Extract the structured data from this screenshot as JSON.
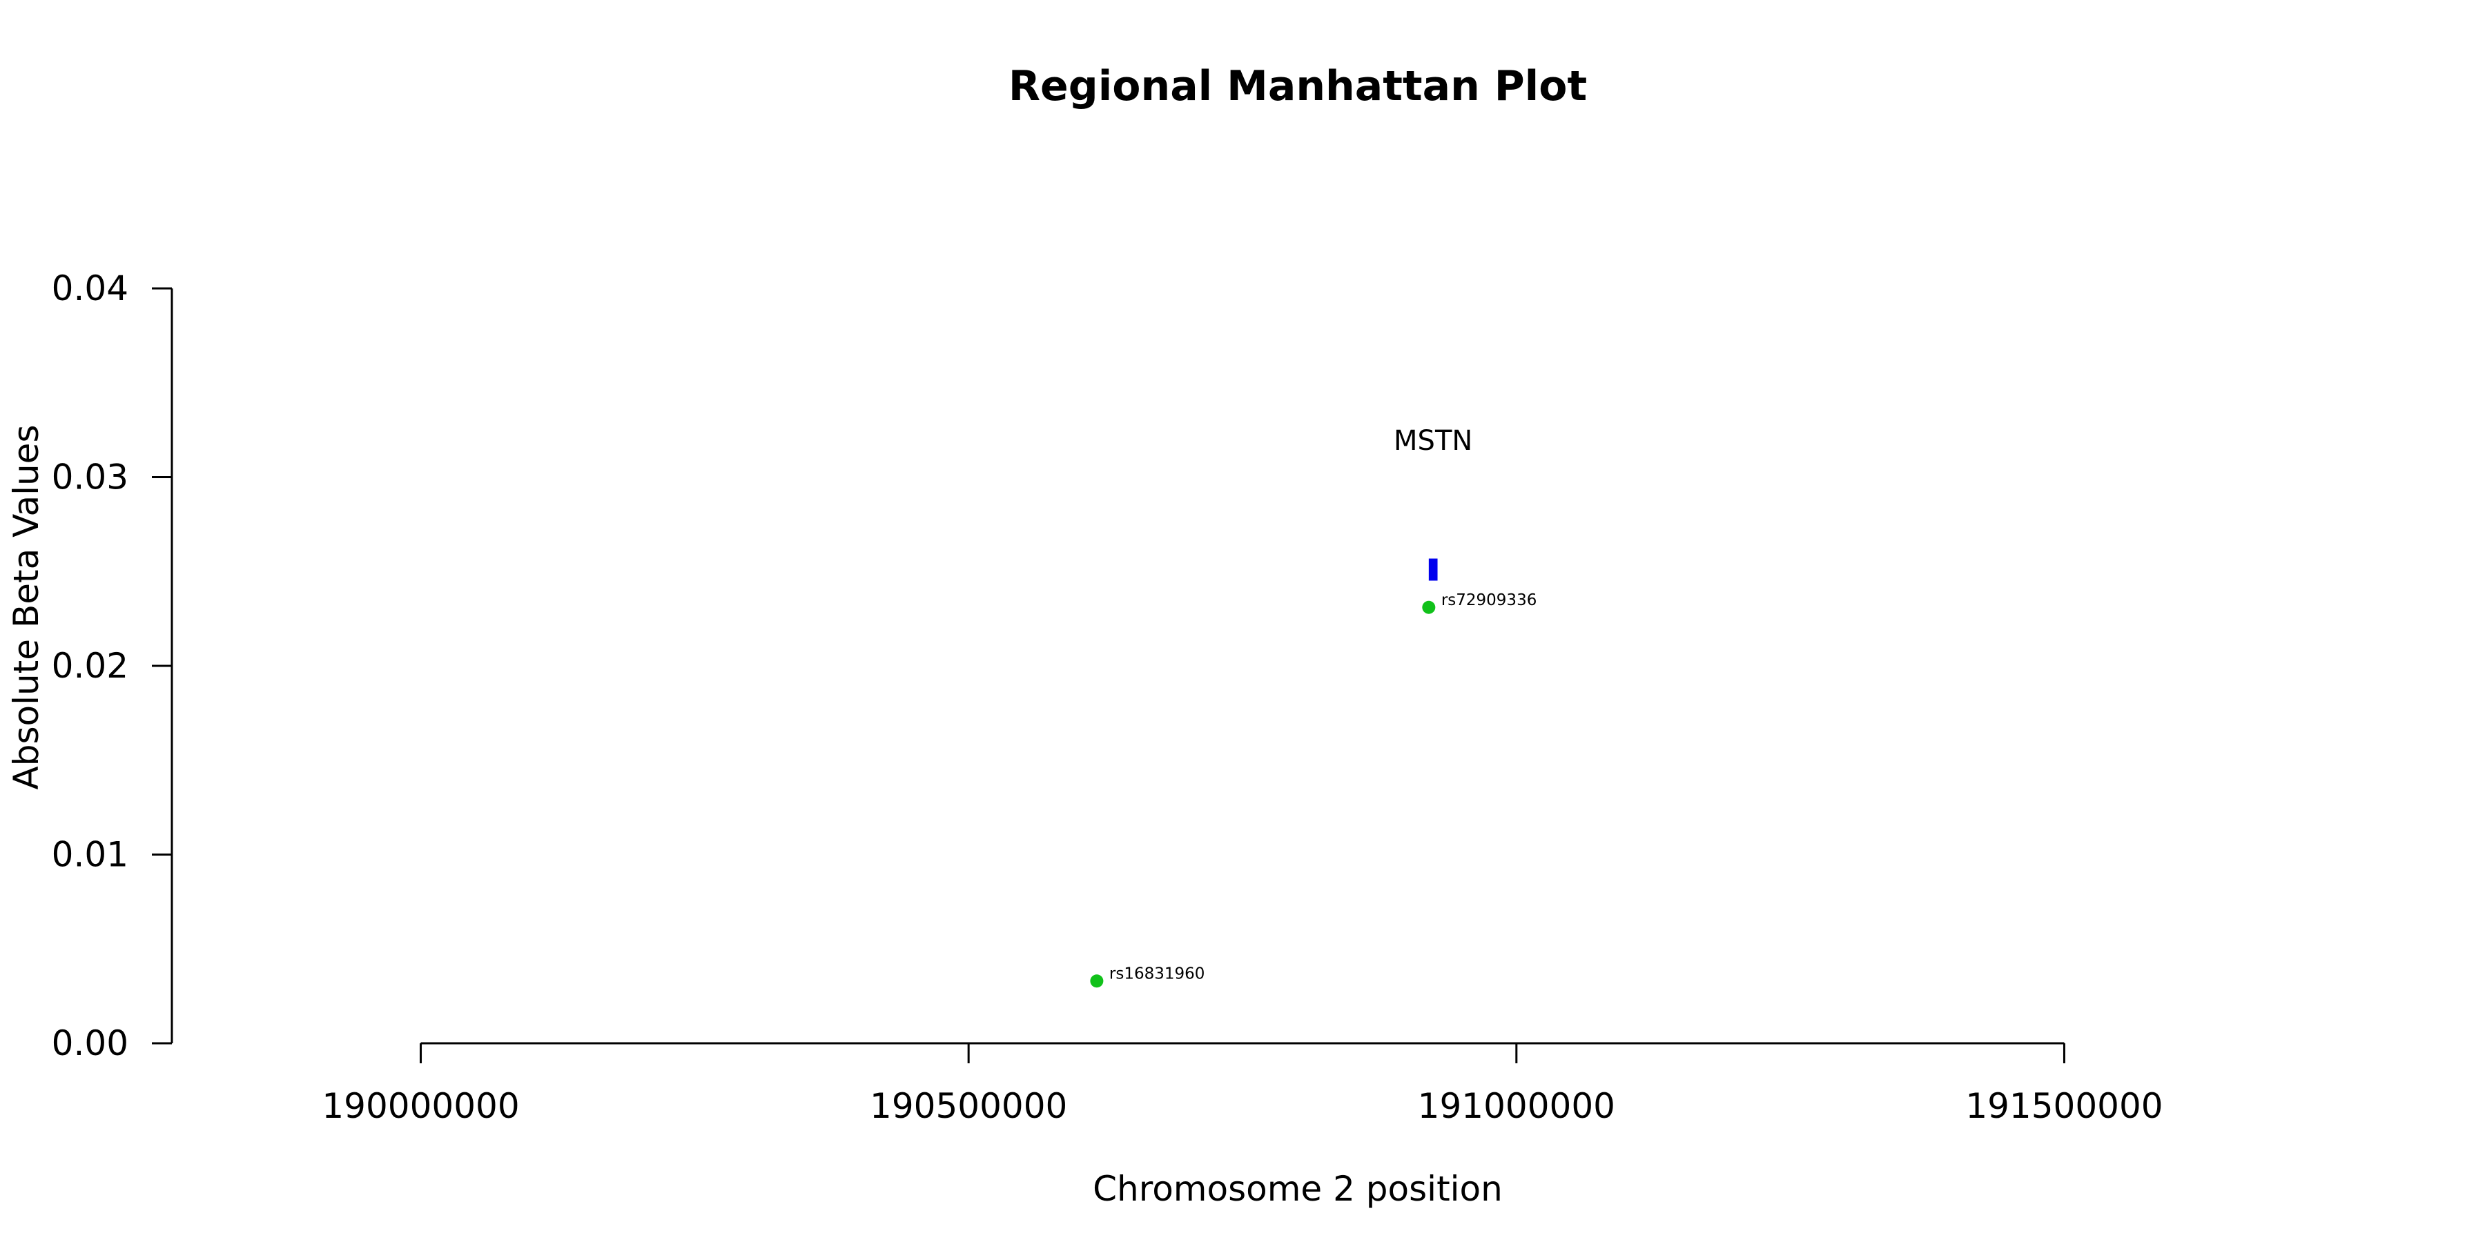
{
  "chart_data": {
    "type": "scatter",
    "title": "Regional Manhattan Plot",
    "xlabel": "Chromosome 2 position",
    "ylabel": "Absolute Beta Values",
    "xlim": [
      189616000,
      191884000
    ],
    "ylim": [
      0,
      0.04
    ],
    "x_ticks": [
      190000000,
      190500000,
      191000000,
      191500000
    ],
    "x_tick_labels": [
      "190000000",
      "190500000",
      "191000000",
      "191500000"
    ],
    "y_ticks": [
      0,
      0.01,
      0.02,
      0.03,
      0.04
    ],
    "y_tick_labels": [
      "0.00",
      "0.01",
      "0.02",
      "0.03",
      "0.04"
    ],
    "grid": false,
    "points": [
      {
        "label": "rs16831960",
        "x": 190617000,
        "y": 0.0033,
        "color": "#11c11a"
      },
      {
        "label": "rs72909336",
        "x": 190920000,
        "y": 0.0231,
        "color": "#11c11a"
      }
    ],
    "genes": [
      {
        "name": "MSTN",
        "start": 190920000,
        "end": 190928000,
        "y": 0.0251,
        "label_y": 0.032,
        "color": "#0000ee"
      }
    ]
  }
}
